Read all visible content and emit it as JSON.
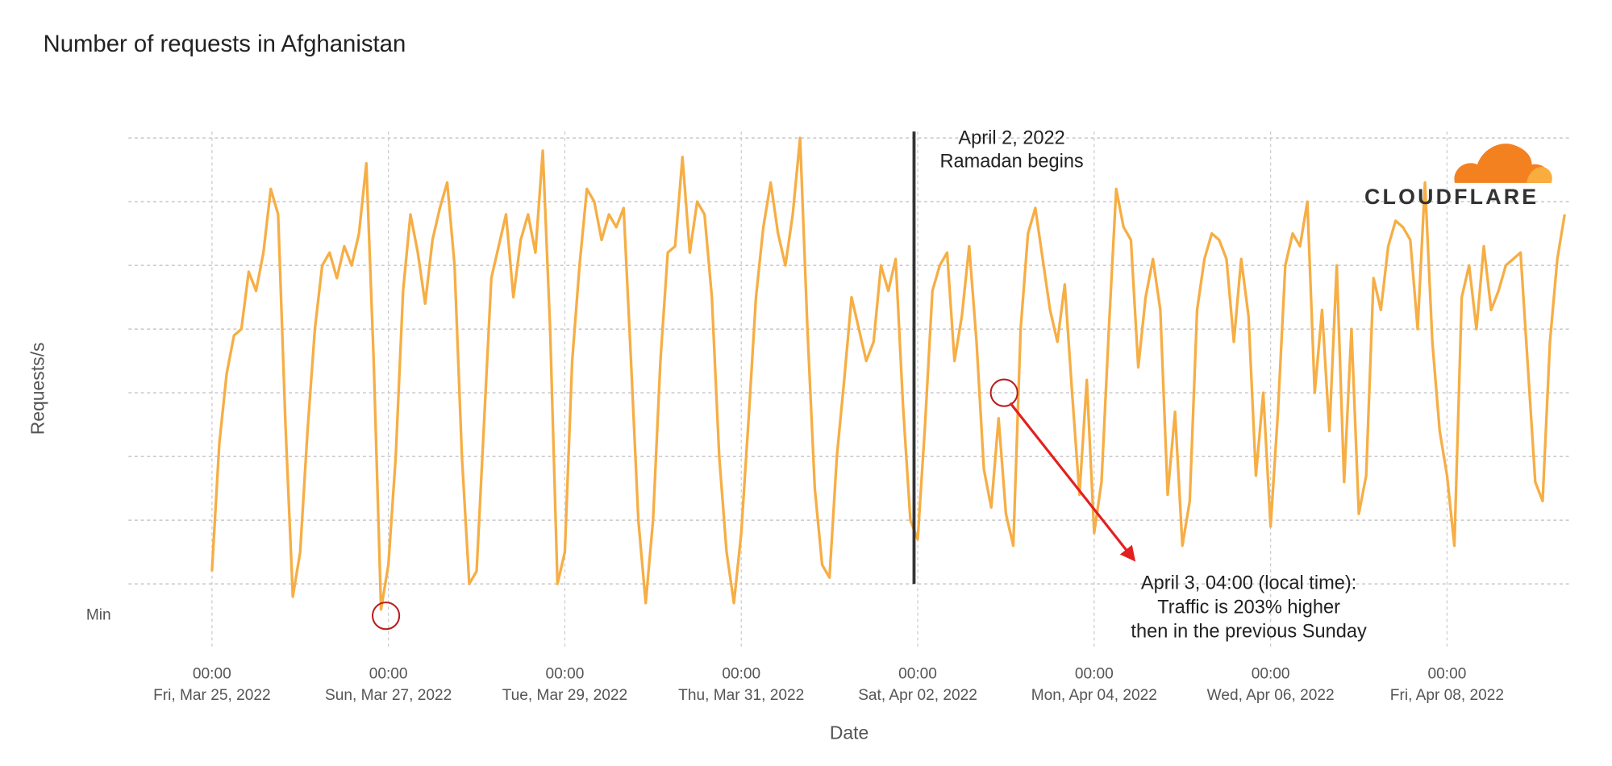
{
  "chart_data": {
    "type": "line",
    "title": "Number of requests in Afghanistan",
    "xlabel": "Date",
    "ylabel": "Requests/s",
    "logo": "CLOUDFLARE",
    "color": "#f6ae45",
    "grid": true,
    "xlim": [
      "2022-03-24T01:18",
      "2022-04-09T09:42"
    ],
    "ylim": [
      0,
      8.1
    ],
    "yticks": [
      {
        "value": 0.5,
        "label": "Min"
      }
    ],
    "ygrid": [
      1,
      2,
      3,
      4,
      5,
      6,
      7,
      8
    ],
    "xticks": [
      {
        "value": "2022-03-25T00:00",
        "label": [
          "00:00",
          "Fri, Mar 25, 2022"
        ]
      },
      {
        "value": "2022-03-27T00:00",
        "label": [
          "00:00",
          "Sun, Mar 27, 2022"
        ]
      },
      {
        "value": "2022-03-29T00:00",
        "label": [
          "00:00",
          "Tue, Mar 29, 2022"
        ]
      },
      {
        "value": "2022-03-31T00:00",
        "label": [
          "00:00",
          "Thu, Mar 31, 2022"
        ]
      },
      {
        "value": "2022-04-02T00:00",
        "label": [
          "00:00",
          "Sat, Apr 02, 2022"
        ]
      },
      {
        "value": "2022-04-04T00:00",
        "label": [
          "00:00",
          "Mon, Apr 04, 2022"
        ]
      },
      {
        "value": "2022-04-06T00:00",
        "label": [
          "00:00",
          "Wed, Apr 06, 2022"
        ]
      },
      {
        "value": "2022-04-08T00:00",
        "label": [
          "00:00",
          "Fri, Apr 08, 2022"
        ]
      }
    ],
    "x": [
      "2022-03-25T00:00",
      "2022-03-25T02:00",
      "2022-03-25T04:00",
      "2022-03-25T06:00",
      "2022-03-25T08:00",
      "2022-03-25T10:00",
      "2022-03-25T12:00",
      "2022-03-25T14:00",
      "2022-03-25T16:00",
      "2022-03-25T18:00",
      "2022-03-25T20:00",
      "2022-03-25T22:00",
      "2022-03-26T00:00",
      "2022-03-26T02:00",
      "2022-03-26T04:00",
      "2022-03-26T06:00",
      "2022-03-26T08:00",
      "2022-03-26T10:00",
      "2022-03-26T12:00",
      "2022-03-26T14:00",
      "2022-03-26T16:00",
      "2022-03-26T18:00",
      "2022-03-26T20:00",
      "2022-03-26T22:00",
      "2022-03-27T00:00",
      "2022-03-27T02:00",
      "2022-03-27T04:00",
      "2022-03-27T06:00",
      "2022-03-27T08:00",
      "2022-03-27T10:00",
      "2022-03-27T12:00",
      "2022-03-27T14:00",
      "2022-03-27T16:00",
      "2022-03-27T18:00",
      "2022-03-27T20:00",
      "2022-03-27T22:00",
      "2022-03-28T00:00",
      "2022-03-28T02:00",
      "2022-03-28T04:00",
      "2022-03-28T06:00",
      "2022-03-28T08:00",
      "2022-03-28T10:00",
      "2022-03-28T12:00",
      "2022-03-28T14:00",
      "2022-03-28T16:00",
      "2022-03-28T18:00",
      "2022-03-28T20:00",
      "2022-03-28T22:00",
      "2022-03-29T00:00",
      "2022-03-29T02:00",
      "2022-03-29T04:00",
      "2022-03-29T06:00",
      "2022-03-29T08:00",
      "2022-03-29T10:00",
      "2022-03-29T12:00",
      "2022-03-29T14:00",
      "2022-03-29T16:00",
      "2022-03-29T18:00",
      "2022-03-29T20:00",
      "2022-03-29T22:00",
      "2022-03-30T00:00",
      "2022-03-30T02:00",
      "2022-03-30T04:00",
      "2022-03-30T06:00",
      "2022-03-30T08:00",
      "2022-03-30T10:00",
      "2022-03-30T12:00",
      "2022-03-30T14:00",
      "2022-03-30T16:00",
      "2022-03-30T18:00",
      "2022-03-30T20:00",
      "2022-03-30T22:00",
      "2022-03-31T00:00",
      "2022-03-31T02:00",
      "2022-03-31T04:00",
      "2022-03-31T06:00",
      "2022-03-31T08:00",
      "2022-03-31T10:00",
      "2022-03-31T12:00",
      "2022-03-31T14:00",
      "2022-03-31T16:00",
      "2022-03-31T18:00",
      "2022-03-31T20:00",
      "2022-03-31T22:00",
      "2022-04-01T00:00",
      "2022-04-01T02:00",
      "2022-04-01T04:00",
      "2022-04-01T06:00",
      "2022-04-01T08:00",
      "2022-04-01T10:00",
      "2022-04-01T12:00",
      "2022-04-01T14:00",
      "2022-04-01T16:00",
      "2022-04-01T18:00",
      "2022-04-01T20:00",
      "2022-04-01T22:00",
      "2022-04-02T00:00",
      "2022-04-02T02:00",
      "2022-04-02T04:00",
      "2022-04-02T06:00",
      "2022-04-02T08:00",
      "2022-04-02T10:00",
      "2022-04-02T12:00",
      "2022-04-02T14:00",
      "2022-04-02T16:00",
      "2022-04-02T18:00",
      "2022-04-02T20:00",
      "2022-04-02T22:00",
      "2022-04-03T00:00",
      "2022-04-03T02:00",
      "2022-04-03T04:00",
      "2022-04-03T06:00",
      "2022-04-03T08:00",
      "2022-04-03T10:00",
      "2022-04-03T12:00",
      "2022-04-03T14:00",
      "2022-04-03T16:00",
      "2022-04-03T18:00",
      "2022-04-03T20:00",
      "2022-04-03T22:00",
      "2022-04-04T00:00",
      "2022-04-04T02:00",
      "2022-04-04T04:00",
      "2022-04-04T06:00",
      "2022-04-04T08:00",
      "2022-04-04T10:00",
      "2022-04-04T12:00",
      "2022-04-04T14:00",
      "2022-04-04T16:00",
      "2022-04-04T18:00",
      "2022-04-04T20:00",
      "2022-04-04T22:00",
      "2022-04-05T00:00",
      "2022-04-05T02:00",
      "2022-04-05T04:00",
      "2022-04-05T06:00",
      "2022-04-05T08:00",
      "2022-04-05T10:00",
      "2022-04-05T12:00",
      "2022-04-05T14:00",
      "2022-04-05T16:00",
      "2022-04-05T18:00",
      "2022-04-05T20:00",
      "2022-04-05T22:00",
      "2022-04-06T00:00",
      "2022-04-06T02:00",
      "2022-04-06T04:00",
      "2022-04-06T06:00",
      "2022-04-06T08:00",
      "2022-04-06T10:00",
      "2022-04-06T12:00",
      "2022-04-06T14:00",
      "2022-04-06T16:00",
      "2022-04-06T18:00",
      "2022-04-06T20:00",
      "2022-04-06T22:00",
      "2022-04-07T00:00",
      "2022-04-07T02:00",
      "2022-04-07T04:00",
      "2022-04-07T06:00",
      "2022-04-07T08:00",
      "2022-04-07T10:00",
      "2022-04-07T12:00",
      "2022-04-07T14:00",
      "2022-04-07T16:00",
      "2022-04-07T18:00",
      "2022-04-07T20:00",
      "2022-04-07T22:00",
      "2022-04-08T00:00",
      "2022-04-08T02:00",
      "2022-04-08T04:00",
      "2022-04-08T06:00",
      "2022-04-08T08:00",
      "2022-04-08T10:00",
      "2022-04-08T12:00",
      "2022-04-08T14:00",
      "2022-04-08T16:00",
      "2022-04-08T18:00",
      "2022-04-08T20:00",
      "2022-04-08T22:00",
      "2022-04-09T00:00",
      "2022-04-09T02:00",
      "2022-04-09T04:00",
      "2022-04-09T06:00",
      "2022-04-09T08:00"
    ],
    "values": [
      1.2,
      3.2,
      4.3,
      4.9,
      5.0,
      5.9,
      5.6,
      6.2,
      7.2,
      6.8,
      3.5,
      0.8,
      1.5,
      3.4,
      5.0,
      6.0,
      6.2,
      5.8,
      6.3,
      6.0,
      6.5,
      7.6,
      4.5,
      0.6,
      1.3,
      3.0,
      5.6,
      6.8,
      6.2,
      5.4,
      6.4,
      6.9,
      7.3,
      6.0,
      3.0,
      1.0,
      1.2,
      3.5,
      5.8,
      6.3,
      6.8,
      5.5,
      6.4,
      6.8,
      6.2,
      7.8,
      5.0,
      1.0,
      1.5,
      4.5,
      6.0,
      7.2,
      7.0,
      6.4,
      6.8,
      6.6,
      6.9,
      4.5,
      2.0,
      0.7,
      2.0,
      4.5,
      6.2,
      6.3,
      7.7,
      6.2,
      7.0,
      6.8,
      5.5,
      3.0,
      1.5,
      0.7,
      1.8,
      3.6,
      5.5,
      6.6,
      7.3,
      6.5,
      6.0,
      6.8,
      8.0,
      5.0,
      2.5,
      1.3,
      1.1,
      3.0,
      4.2,
      5.5,
      5.0,
      4.5,
      4.8,
      6.0,
      5.6,
      6.1,
      3.8,
      2.0,
      1.7,
      3.5,
      5.6,
      6.0,
      6.2,
      4.5,
      5.2,
      6.3,
      4.8,
      2.8,
      2.2,
      3.6,
      2.1,
      1.6,
      5.0,
      6.5,
      6.9,
      6.1,
      5.3,
      4.8,
      5.7,
      4.0,
      2.4,
      4.2,
      1.8,
      2.6,
      5.0,
      7.2,
      6.6,
      6.4,
      4.4,
      5.5,
      6.1,
      5.3,
      2.4,
      3.7,
      1.6,
      2.3,
      5.3,
      6.1,
      6.5,
      6.4,
      6.1,
      4.8,
      6.1,
      5.2,
      2.7,
      4.0,
      1.9,
      3.7,
      6.0,
      6.5,
      6.3,
      7.0,
      4.0,
      5.3,
      3.4,
      6.0,
      2.6,
      5.0,
      2.1,
      2.7,
      5.8,
      5.3,
      6.3,
      6.7,
      6.6,
      6.4,
      5.0,
      7.3,
      4.8,
      3.4,
      2.7,
      1.6,
      5.5,
      6.0,
      5.0,
      6.3,
      5.3,
      5.6,
      6.0,
      6.1,
      6.2,
      4.4,
      2.6,
      2.3,
      4.8,
      6.1,
      6.8
    ],
    "annotations": [
      {
        "type": "vline",
        "x": "2022-04-01T23:00",
        "color": "#333333",
        "text": [
          "April 2, 2022",
          "Ramadan begins"
        ]
      },
      {
        "type": "circle",
        "x": "2022-03-26T23:20",
        "y": 0.5,
        "color": "#b81c1c"
      },
      {
        "type": "circle",
        "x": "2022-04-02T23:30",
        "y": 4.0,
        "color": "#b81c1c",
        "arrow_color": "#e3201f",
        "text": [
          "April 3, 04:00 (local time):",
          "Traffic is 203% higher",
          "then in the previous Sunday"
        ]
      }
    ]
  }
}
